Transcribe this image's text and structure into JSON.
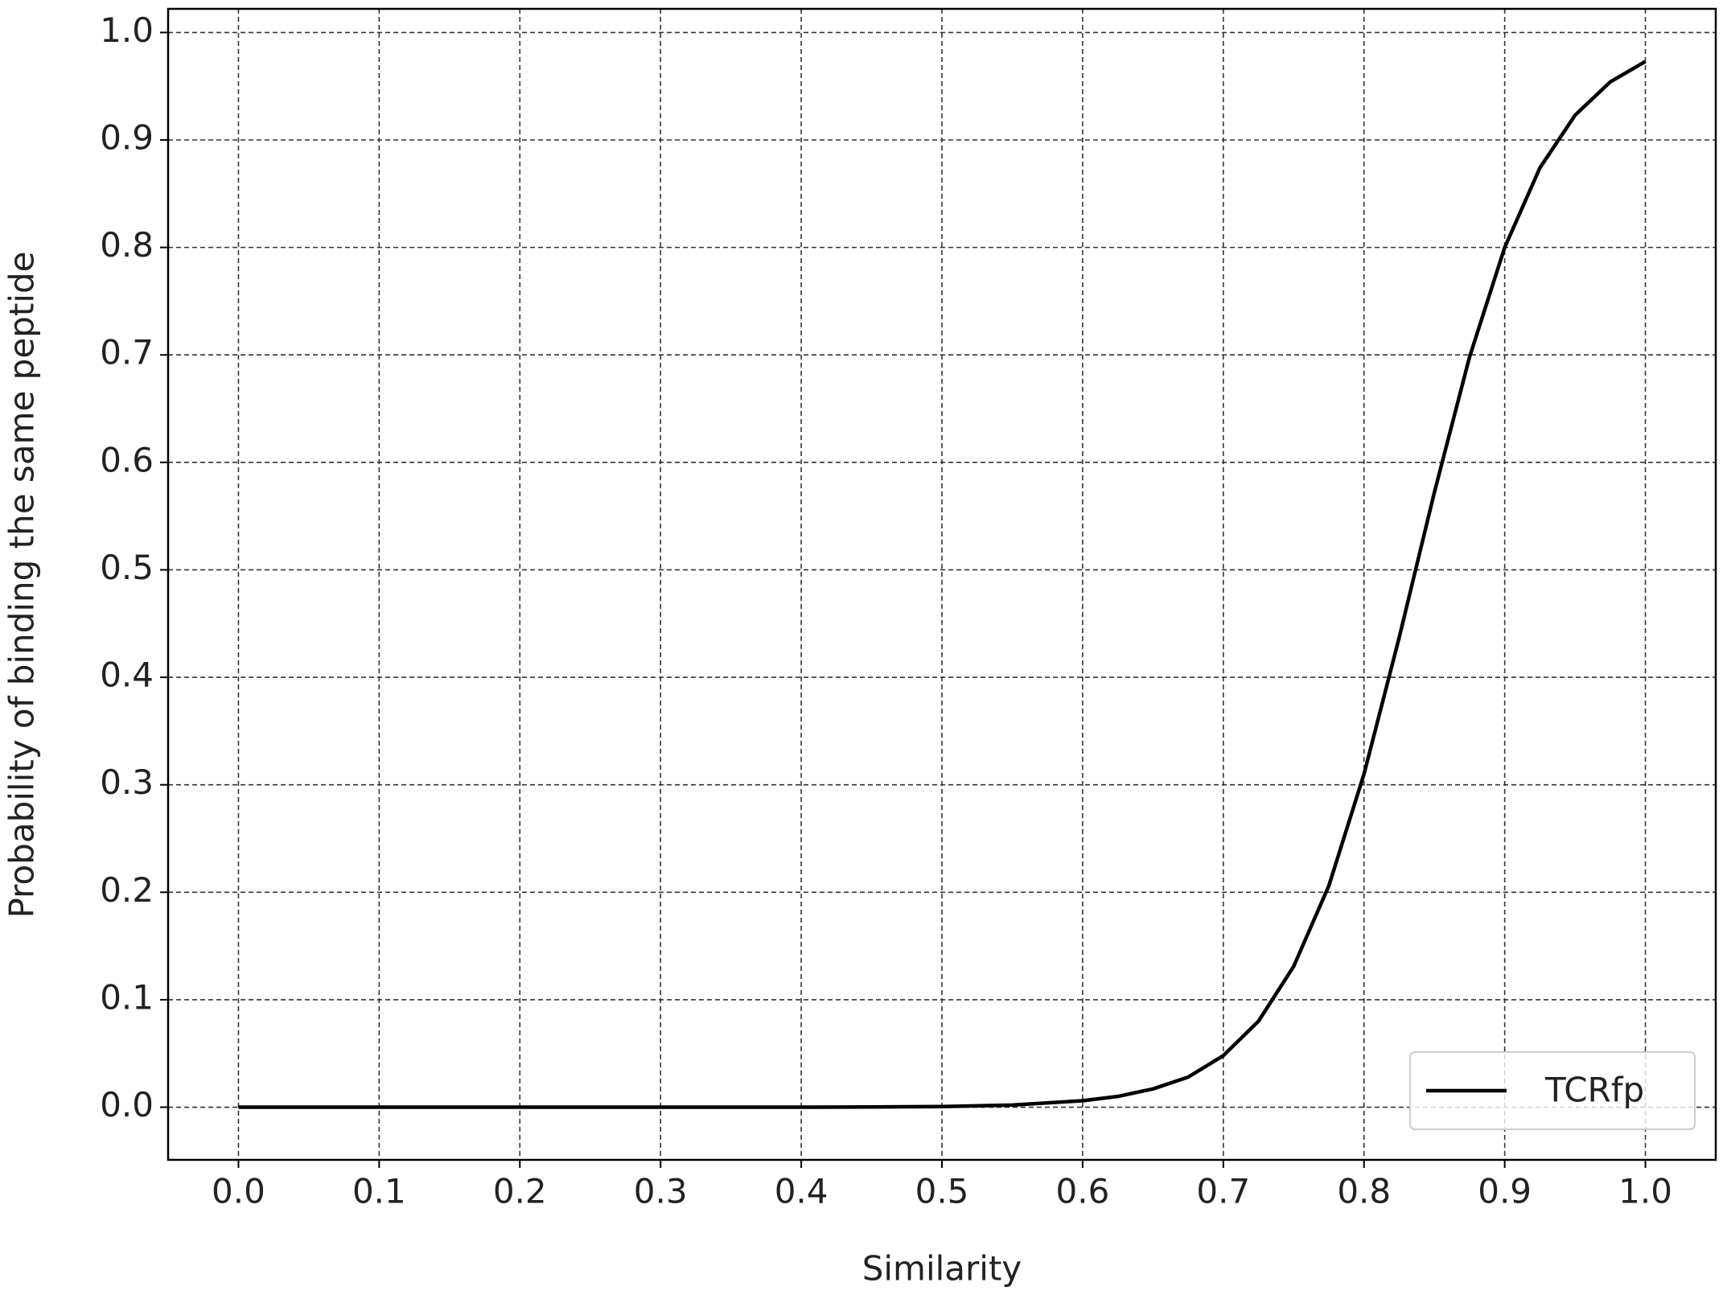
{
  "chart_data": {
    "type": "line",
    "x_label": "Similarity",
    "y_label": "Probability of binding the same peptide",
    "x": [
      0,
      0.1,
      0.2,
      0.3,
      0.4,
      0.45,
      0.5,
      0.55,
      0.6,
      0.625,
      0.65,
      0.675,
      0.7,
      0.725,
      0.75,
      0.775,
      0.8,
      0.825,
      0.85,
      0.875,
      0.9,
      0.925,
      0.95,
      0.975,
      1.0
    ],
    "series": [
      {
        "name": "TCRfp",
        "color": "#000000",
        "values": [
          0,
          0,
          0,
          0,
          0,
          0.0002,
          0.0006,
          0.002,
          0.006,
          0.01,
          0.017,
          0.028,
          0.048,
          0.08,
          0.131,
          0.206,
          0.31,
          0.437,
          0.572,
          0.698,
          0.8,
          0.874,
          0.923,
          0.954,
          0.973
        ]
      }
    ],
    "xlim": [
      -0.05,
      1.05
    ],
    "ylim": [
      -0.049,
      1.022
    ],
    "xticks": [
      {
        "value": 0,
        "label": "0.0"
      },
      0.1,
      0.2,
      0.3,
      0.4,
      0.5,
      0.6,
      0.7,
      0.8,
      0.9,
      {
        "value": 1,
        "label": "1.0"
      }
    ],
    "yticks": [
      {
        "value": 0,
        "label": "0.0"
      },
      0.1,
      0.2,
      0.3,
      0.4,
      0.5,
      0.6,
      0.7,
      0.8,
      0.9,
      {
        "value": 1,
        "label": "1.0"
      }
    ],
    "grid": true,
    "legend": "lower right"
  }
}
